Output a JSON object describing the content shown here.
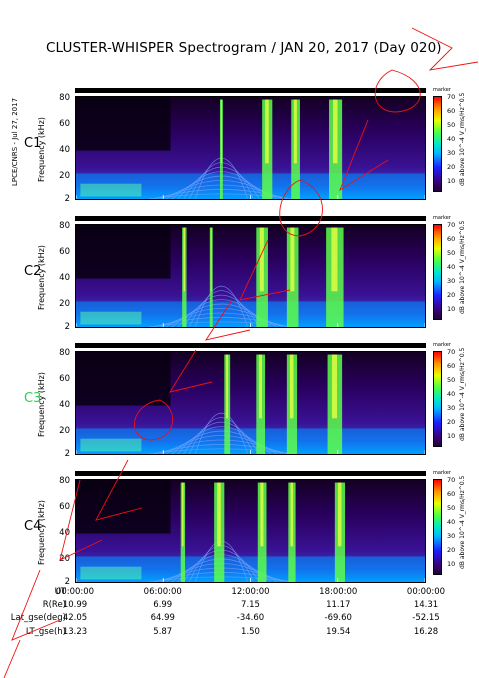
{
  "title": "CLUSTER-WHISPER Spectrogram / JAN 20, 2017 (Day 020)",
  "side_caption": "LPCE/CNRS - Jul 27, 2017",
  "status_label": "marker",
  "ylabel": "Frequency (kHz)",
  "colorbar_label": "dB above 10^-4 V_rms/Hz^0.5",
  "colorbar_ticks": [
    "70",
    "60",
    "50",
    "40",
    "30",
    "20",
    "10"
  ],
  "colors": {
    "c3_label": "#33cc55",
    "annotation": "#ee1111"
  },
  "panels": [
    {
      "label": "C1",
      "yticks": [
        "80",
        "60",
        "40",
        "20",
        "2"
      ]
    },
    {
      "label": "C2",
      "yticks": [
        "80",
        "60",
        "40",
        "20",
        "2"
      ]
    },
    {
      "label": "C3",
      "yticks": [
        "80",
        "60",
        "40",
        "20",
        "2"
      ]
    },
    {
      "label": "C4",
      "yticks": [
        "80",
        "60",
        "40",
        "20",
        "2"
      ]
    }
  ],
  "ephemeris": {
    "row_labels": [
      "UT",
      "R(Re)",
      "Lat_gse(deg)",
      "LT_gse(h)"
    ],
    "columns": [
      {
        "time": "00:00:00",
        "r": "10.99",
        "lat": "42.05",
        "lt": "13.23"
      },
      {
        "time": "06:00:00",
        "r": "6.99",
        "lat": "64.99",
        "lt": "5.87"
      },
      {
        "time": "12:00:00",
        "r": "7.15",
        "lat": "-34.60",
        "lt": "1.50"
      },
      {
        "time": "18:00:00",
        "r": "11.17",
        "lat": "-69.60",
        "lt": "19.54"
      },
      {
        "time": "00:00:00",
        "r": "14.31",
        "lat": "-52.15",
        "lt": "16.28"
      }
    ]
  },
  "chart_data": {
    "type": "heatmap",
    "title": "CLUSTER-WHISPER Spectrogram / JAN 20, 2017 (Day 020)",
    "xlabel": "UT",
    "ylabel": "Frequency (kHz)",
    "x_ticks": [
      "00:00:00",
      "06:00:00",
      "12:00:00",
      "18:00:00",
      "00:00:00"
    ],
    "x_range_hours": [
      0,
      24
    ],
    "y_range_khz": [
      2,
      82
    ],
    "y_ticks": [
      2,
      20,
      40,
      60,
      80
    ],
    "colorbar_range_db": [
      5,
      72
    ],
    "colorbar_ticks": [
      10,
      20,
      30,
      40,
      50,
      60,
      70
    ],
    "panels": [
      "C1",
      "C2",
      "C3",
      "C4"
    ],
    "strong_emission_bands_hours": [
      {
        "panel": "C1",
        "intervals": [
          [
            9.9,
            10.1
          ],
          [
            12.8,
            13.5
          ],
          [
            14.8,
            15.4
          ],
          [
            17.4,
            18.3
          ]
        ]
      },
      {
        "panel": "C2",
        "intervals": [
          [
            7.3,
            7.6
          ],
          [
            9.2,
            9.4
          ],
          [
            12.4,
            13.2
          ],
          [
            14.5,
            15.3
          ],
          [
            17.2,
            18.4
          ]
        ]
      },
      {
        "panel": "C3",
        "intervals": [
          [
            10.2,
            10.6
          ],
          [
            12.4,
            13.0
          ],
          [
            14.5,
            15.2
          ],
          [
            17.3,
            18.3
          ]
        ]
      },
      {
        "panel": "C4",
        "intervals": [
          [
            7.2,
            7.5
          ],
          [
            9.5,
            10.2
          ],
          [
            12.5,
            13.1
          ],
          [
            14.6,
            15.1
          ],
          [
            17.8,
            18.5
          ]
        ]
      }
    ]
  }
}
